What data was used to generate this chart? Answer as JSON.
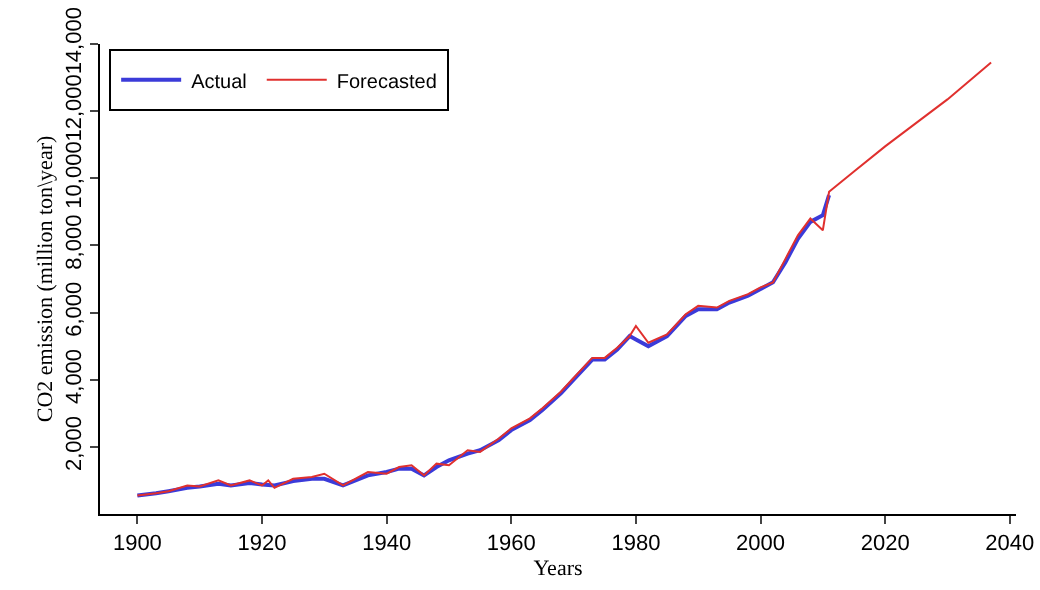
{
  "chart_data": {
    "type": "line",
    "xlabel": "Years",
    "ylabel": "CO2 emission (million ton\\year)",
    "xlim": [
      1894,
      2041
    ],
    "ylim": [
      0,
      14000
    ],
    "xticks": [
      1900,
      1920,
      1940,
      1960,
      1980,
      2000,
      2020,
      2040
    ],
    "yticks": [
      {
        "value": 2000,
        "label": "2,000"
      },
      {
        "value": 4000,
        "label": "4,000"
      },
      {
        "value": 6000,
        "label": "6,000"
      },
      {
        "value": 8000,
        "label": "8,000"
      },
      {
        "value": 10000,
        "label": "10,000"
      },
      {
        "value": 12000,
        "label": "12,000"
      },
      {
        "value": 14000,
        "label": "14,000"
      }
    ],
    "grid": false,
    "legend": "top left",
    "line_style": "solid",
    "marker": "none",
    "series": [
      {
        "name": "Actual",
        "color": "#3b3bd9",
        "x": [
          1900,
          1903,
          1905,
          1908,
          1910,
          1913,
          1915,
          1918,
          1920,
          1922,
          1925,
          1928,
          1930,
          1933,
          1937,
          1940,
          1942,
          1944,
          1946,
          1948,
          1950,
          1953,
          1955,
          1958,
          1960,
          1963,
          1965,
          1968,
          1970,
          1973,
          1975,
          1977,
          1979,
          1980,
          1982,
          1985,
          1988,
          1990,
          1993,
          1995,
          1998,
          2000,
          2002,
          2004,
          2006,
          2008,
          2010,
          2011
        ],
        "values": [
          550,
          620,
          680,
          780,
          820,
          900,
          850,
          920,
          880,
          850,
          980,
          1050,
          1050,
          850,
          1150,
          1250,
          1350,
          1350,
          1150,
          1400,
          1600,
          1800,
          1900,
          2200,
          2500,
          2800,
          3100,
          3600,
          4000,
          4600,
          4600,
          4900,
          5300,
          5200,
          5000,
          5300,
          5900,
          6100,
          6100,
          6300,
          6500,
          6700,
          6900,
          7500,
          8200,
          8700,
          8900,
          9500
        ]
      },
      {
        "name": "Forecasted",
        "color": "#e0302e",
        "x": [
          1900,
          1903,
          1905,
          1908,
          1910,
          1913,
          1915,
          1918,
          1920,
          1921,
          1922,
          1925,
          1928,
          1930,
          1933,
          1937,
          1940,
          1942,
          1944,
          1946,
          1948,
          1950,
          1953,
          1955,
          1958,
          1960,
          1963,
          1965,
          1968,
          1970,
          1973,
          1975,
          1977,
          1979,
          1980,
          1982,
          1985,
          1988,
          1990,
          1993,
          1995,
          1998,
          2000,
          2002,
          2004,
          2006,
          2008,
          2010,
          2011,
          2015,
          2020,
          2025,
          2030,
          2037
        ],
        "values": [
          550,
          620,
          680,
          850,
          820,
          1000,
          850,
          1000,
          850,
          1000,
          780,
          1050,
          1100,
          1200,
          850,
          1250,
          1200,
          1400,
          1450,
          1150,
          1500,
          1450,
          1900,
          1850,
          2250,
          2550,
          2850,
          3150,
          3650,
          4050,
          4650,
          4650,
          4950,
          5300,
          5600,
          5100,
          5350,
          5950,
          6200,
          6150,
          6350,
          6550,
          6750,
          6900,
          7600,
          8300,
          8800,
          8450,
          9600,
          10200,
          10950,
          11650,
          12350,
          13450
        ]
      }
    ]
  }
}
